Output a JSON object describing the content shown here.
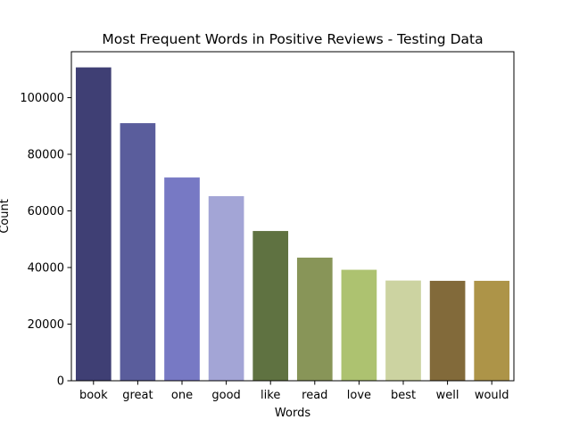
{
  "chart_data": {
    "type": "bar",
    "title": "Most Frequent Words in Positive Reviews - Testing Data",
    "xlabel": "Words",
    "ylabel": "Count",
    "categories": [
      "book",
      "great",
      "one",
      "good",
      "like",
      "read",
      "love",
      "best",
      "well",
      "would"
    ],
    "values": [
      110700,
      91000,
      71800,
      65200,
      52900,
      43500,
      39200,
      35400,
      35300,
      35300
    ],
    "colors": [
      "#3f3f74",
      "#5a5d9c",
      "#7779c4",
      "#a3a5d6",
      "#5f7241",
      "#889558",
      "#adc270",
      "#ccd3a1",
      "#826a3a",
      "#ad9448"
    ],
    "ylim": [
      0,
      116235
    ],
    "yticks": [
      0,
      20000,
      40000,
      60000,
      80000,
      100000
    ],
    "ytick_labels": [
      "0",
      "20000",
      "40000",
      "60000",
      "80000",
      "100000"
    ],
    "grid": false,
    "legend": "none"
  }
}
